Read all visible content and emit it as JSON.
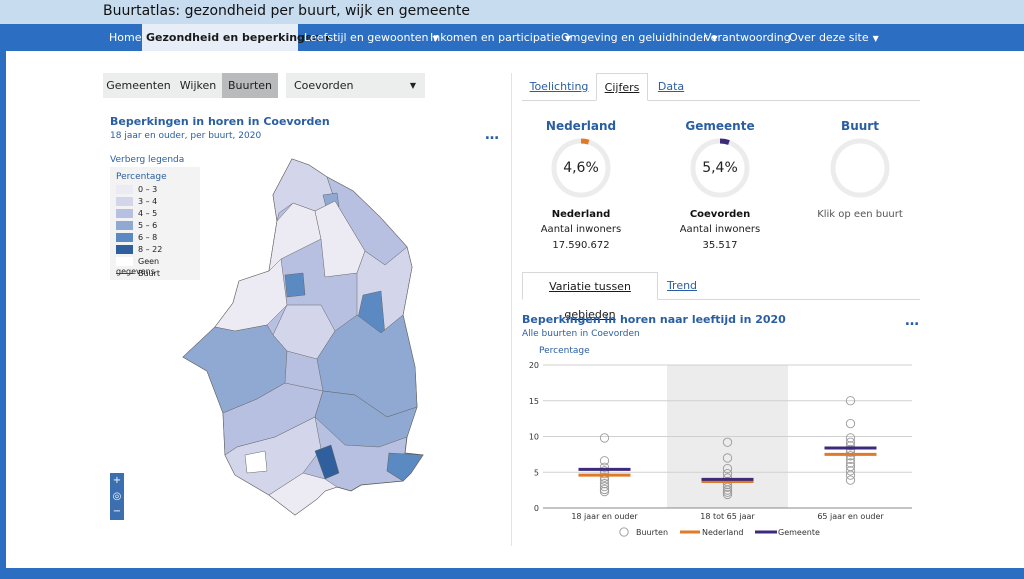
{
  "app": {
    "title": "Buurtatlas: gezondheid per buurt, wijk en gemeente"
  },
  "nav": {
    "items": [
      {
        "label": "Home",
        "dropdown": false
      },
      {
        "label": "Gezondheid en beperkingen",
        "dropdown": true,
        "active": true
      },
      {
        "label": "Leefstijl en gewoonten",
        "dropdown": true
      },
      {
        "label": "Inkomen en participatie",
        "dropdown": true
      },
      {
        "label": "Omgeving en geluidhinder",
        "dropdown": true
      },
      {
        "label": "Verantwoording",
        "dropdown": false
      },
      {
        "label": "Over deze site",
        "dropdown": true
      }
    ]
  },
  "level": {
    "options": [
      "Gemeenten",
      "Wijken",
      "Buurten"
    ],
    "selected": "Buurten"
  },
  "municipality": {
    "selected": "Coevorden"
  },
  "map": {
    "title": "Beperkingen in horen in Coevorden",
    "subtitle": "18 jaar en ouder, per buurt, 2020",
    "menu": "…",
    "hide_legend": "Verberg legenda",
    "legend": {
      "title": "Percentage",
      "classes": [
        {
          "label": "0 – 3",
          "color": "#eceaf3"
        },
        {
          "label": "3 – 4",
          "color": "#d3d6ea"
        },
        {
          "label": "4 – 5",
          "color": "#b7c0e0"
        },
        {
          "label": "5 – 6",
          "color": "#90a9d2"
        },
        {
          "label": "6 – 8",
          "color": "#5b8ac2"
        },
        {
          "label": "8 – 22",
          "color": "#2f5f9c"
        }
      ],
      "no_data": "Geen gegevens",
      "line_label": "Buurt"
    },
    "zoom": {
      "in": "+",
      "locate": "◎",
      "out": "−"
    }
  },
  "tabs_top": {
    "items": [
      "Toelichting",
      "Cijfers",
      "Data"
    ],
    "active": "Cijfers"
  },
  "kpis": [
    {
      "heading": "Nederland",
      "value": "4,6%",
      "name": "Nederland",
      "label": "Aantal inwoners",
      "number": "17.590.672",
      "marker_color": "#e07a26"
    },
    {
      "heading": "Gemeente",
      "value": "5,4%",
      "name": "Coevorden",
      "label": "Aantal inwoners",
      "number": "35.517",
      "marker_color": "#3d2a7a"
    },
    {
      "heading": "Buurt",
      "click_text": "Klik op een buurt"
    }
  ],
  "tabs_bottom": {
    "items": [
      "Variatie tussen gebieden",
      "Trend"
    ],
    "active": "Variatie tussen gebieden"
  },
  "chart_data": {
    "type": "scatter",
    "title": "Beperkingen in horen naar leeftijd in 2020",
    "subtitle": "Alle buurten in Coevorden",
    "ylabel": "Percentage",
    "ylim": [
      0,
      20
    ],
    "yticks": [
      0,
      5,
      10,
      15,
      20
    ],
    "grid": true,
    "categories": [
      "18 jaar en ouder",
      "18 tot 65 jaar",
      "65 jaar en ouder"
    ],
    "highlight_category": "18 tot 65 jaar",
    "buurten": [
      [
        9.8,
        6.6,
        5.7,
        5.2,
        4.8,
        4.3,
        3.9,
        3.4,
        3.0,
        2.6,
        2.3
      ],
      [
        9.2,
        7.0,
        5.5,
        4.8,
        4.2,
        3.7,
        3.3,
        2.9,
        2.5,
        2.2,
        1.9
      ],
      [
        15.0,
        11.8,
        9.8,
        9.2,
        8.7,
        8.2,
        7.8,
        7.3,
        6.8,
        6.3,
        5.8,
        5.2,
        4.6,
        3.9
      ]
    ],
    "series": [
      {
        "name": "Nederland",
        "values": [
          4.6,
          3.7,
          7.5
        ],
        "color": "#e07a26"
      },
      {
        "name": "Gemeente",
        "values": [
          5.4,
          4.0,
          8.4
        ],
        "color": "#3d2a7a"
      }
    ],
    "legend": [
      "Buurten",
      "Nederland",
      "Gemeente"
    ]
  }
}
